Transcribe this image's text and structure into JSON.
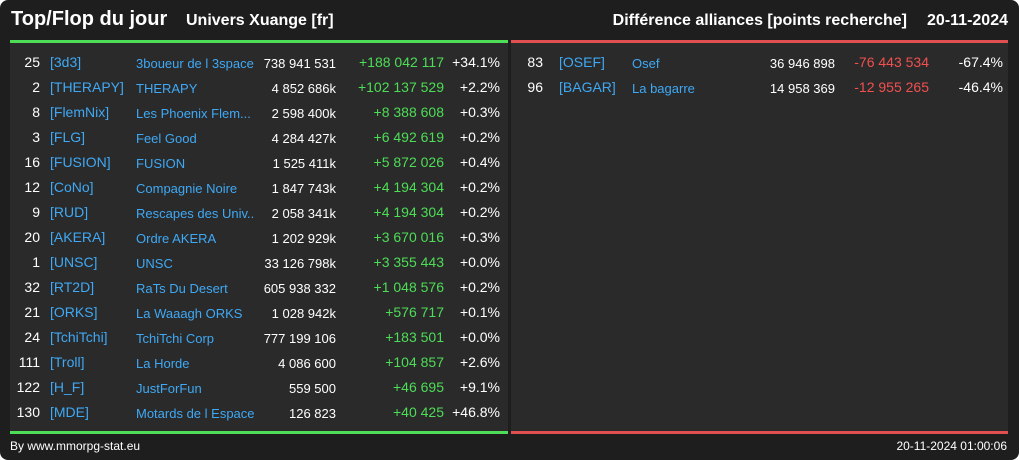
{
  "header": {
    "title": "Top/Flop du jour",
    "server": "Univers Xuange [fr]",
    "subtitle": "Différence alliances [points recherche]",
    "date": "20-11-2024"
  },
  "colors": {
    "positive": "#4ddd56",
    "negative": "#f05050",
    "link": "#3fa9f5"
  },
  "top": [
    {
      "rank": "25",
      "tag": "[3d3]",
      "name": "3boueur de l 3space",
      "points": "738 941 531",
      "diff": "+188 042 117",
      "pct": "+34.1%"
    },
    {
      "rank": "2",
      "tag": "[THERAPY]",
      "name": "THERAPY",
      "points": "4 852 686k",
      "diff": "+102 137 529",
      "pct": "+2.2%"
    },
    {
      "rank": "8",
      "tag": "[FlemNix]",
      "name": "Les Phoenix Flem...",
      "points": "2 598 400k",
      "diff": "+8 388 608",
      "pct": "+0.3%"
    },
    {
      "rank": "3",
      "tag": "[FLG]",
      "name": "Feel Good",
      "points": "4 284 427k",
      "diff": "+6 492 619",
      "pct": "+0.2%"
    },
    {
      "rank": "16",
      "tag": "[FUSION]",
      "name": "FUSION",
      "points": "1 525 411k",
      "diff": "+5 872 026",
      "pct": "+0.4%"
    },
    {
      "rank": "12",
      "tag": "[CoNo]",
      "name": "Compagnie Noire",
      "points": "1 847 743k",
      "diff": "+4 194 304",
      "pct": "+0.2%"
    },
    {
      "rank": "9",
      "tag": "[RUD]",
      "name": "Rescapes des Univ...",
      "points": "2 058 341k",
      "diff": "+4 194 304",
      "pct": "+0.2%"
    },
    {
      "rank": "20",
      "tag": "[AKERA]",
      "name": "Ordre AKERA",
      "points": "1 202 929k",
      "diff": "+3 670 016",
      "pct": "+0.3%"
    },
    {
      "rank": "1",
      "tag": "[UNSC]",
      "name": "UNSC",
      "points": "33 126 798k",
      "diff": "+3 355 443",
      "pct": "+0.0%"
    },
    {
      "rank": "32",
      "tag": "[RT2D]",
      "name": "RaTs Du Desert",
      "points": "605 938 332",
      "diff": "+1 048 576",
      "pct": "+0.2%"
    },
    {
      "rank": "21",
      "tag": "[ORKS]",
      "name": "La Waaagh ORKS",
      "points": "1 028 942k",
      "diff": "+576 717",
      "pct": "+0.1%"
    },
    {
      "rank": "24",
      "tag": "[TchiTchi]",
      "name": "TchiTchi Corp",
      "points": "777 199 106",
      "diff": "+183 501",
      "pct": "+0.0%"
    },
    {
      "rank": "111",
      "tag": "[Troll]",
      "name": "La Horde",
      "points": "4 086 600",
      "diff": "+104 857",
      "pct": "+2.6%"
    },
    {
      "rank": "122",
      "tag": "[H_F]",
      "name": "JustForFun",
      "points": "559 500",
      "diff": "+46 695",
      "pct": "+9.1%"
    },
    {
      "rank": "130",
      "tag": "[MDE]",
      "name": "Motards de l Espace",
      "points": "126 823",
      "diff": "+40 425",
      "pct": "+46.8%"
    }
  ],
  "flop": [
    {
      "rank": "83",
      "tag": "[OSEF]",
      "name": "Osef",
      "points": "36 946 898",
      "diff": "-76 443 534",
      "pct": "-67.4%"
    },
    {
      "rank": "96",
      "tag": "[BAGAR]",
      "name": "La bagarre",
      "points": "14 958 369",
      "diff": "-12 955 265",
      "pct": "-46.4%"
    }
  ],
  "footer": {
    "credit": "By www.mmorpg-stat.eu",
    "timestamp": "20-11-2024 01:00:06"
  }
}
